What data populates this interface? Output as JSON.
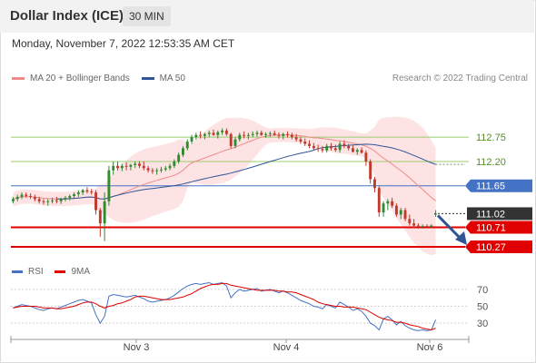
{
  "header": {
    "title": "Dollar Index (ICE)",
    "timeframe": "30 MIN"
  },
  "datetime": "Monday, November 7, 2022 12:53:35 AM CET",
  "legend": {
    "ma20_label": "MA 20 + Bollinger Bands",
    "ma50_label": "MA 50",
    "rsi_label": "RSI",
    "ma9_label": "9MA"
  },
  "credit": "Research © 2022 Trading Central",
  "colors": {
    "bollinger_band": "#fddede",
    "ma20": "#f08a8a",
    "ma50": "#2f5597",
    "candle_up": "#2e8b2e",
    "candle_down": "#c0392b",
    "resistance": "#9acd6e",
    "pivot": "#4472c4",
    "support": "#e00000",
    "last_price": "#333333",
    "rsi": "#4472c4",
    "rsi_ma": "#e00000",
    "arrow": "#2f5597"
  },
  "chart_data": [
    {
      "type": "candlestick",
      "title": "Dollar Index (ICE)",
      "timeframe": "30 MIN",
      "x_ticks": [
        "Nov 3",
        "Nov 4",
        "Nov 6"
      ],
      "y_range": [
        109.9,
        113.8
      ],
      "levels": [
        {
          "label": "112.75",
          "value": 112.75,
          "kind": "resistance"
        },
        {
          "label": "112.20",
          "value": 112.2,
          "kind": "resistance"
        },
        {
          "label": "111.65",
          "value": 111.65,
          "kind": "pivot"
        },
        {
          "label": "111.02",
          "value": 111.02,
          "kind": "last"
        },
        {
          "label": "110.71",
          "value": 110.71,
          "kind": "support"
        },
        {
          "label": "110.27",
          "value": 110.27,
          "kind": "support"
        }
      ],
      "candles": [
        [
          111.3,
          111.4,
          111.25,
          111.35
        ],
        [
          111.35,
          111.45,
          111.3,
          111.4
        ],
        [
          111.4,
          111.5,
          111.35,
          111.45
        ],
        [
          111.45,
          111.5,
          111.38,
          111.42
        ],
        [
          111.42,
          111.48,
          111.35,
          111.4
        ],
        [
          111.4,
          111.45,
          111.3,
          111.35
        ],
        [
          111.35,
          111.4,
          111.25,
          111.3
        ],
        [
          111.3,
          111.35,
          111.22,
          111.28
        ],
        [
          111.28,
          111.35,
          111.2,
          111.3
        ],
        [
          111.3,
          111.38,
          111.25,
          111.32
        ],
        [
          111.32,
          111.4,
          111.25,
          111.3
        ],
        [
          111.3,
          111.38,
          111.24,
          111.35
        ],
        [
          111.35,
          111.42,
          111.3,
          111.38
        ],
        [
          111.38,
          111.45,
          111.32,
          111.42
        ],
        [
          111.42,
          111.5,
          111.38,
          111.46
        ],
        [
          111.46,
          111.55,
          111.4,
          111.5
        ],
        [
          111.5,
          111.58,
          111.44,
          111.55
        ],
        [
          111.55,
          111.62,
          111.48,
          111.52
        ],
        [
          111.52,
          111.58,
          111.45,
          111.5
        ],
        [
          111.5,
          111.55,
          111.0,
          111.1
        ],
        [
          111.1,
          111.15,
          110.5,
          110.8
        ],
        [
          110.8,
          111.5,
          110.4,
          111.3
        ],
        [
          111.3,
          112.1,
          111.2,
          112.0
        ],
        [
          112.0,
          112.2,
          111.9,
          112.1
        ],
        [
          112.1,
          112.2,
          112.0,
          112.05
        ],
        [
          112.05,
          112.15,
          111.98,
          112.1
        ],
        [
          112.1,
          112.18,
          112.0,
          112.08
        ],
        [
          112.08,
          112.15,
          112.0,
          112.12
        ],
        [
          112.12,
          112.2,
          112.05,
          112.15
        ],
        [
          112.15,
          112.2,
          112.05,
          112.1
        ],
        [
          112.1,
          112.2,
          112.0,
          112.05
        ],
        [
          112.05,
          112.1,
          111.95,
          112.0
        ],
        [
          112.0,
          112.05,
          111.92,
          111.98
        ],
        [
          111.98,
          112.05,
          111.9,
          112.0
        ],
        [
          112.0,
          112.08,
          111.95,
          112.02
        ],
        [
          112.02,
          112.1,
          111.98,
          112.05
        ],
        [
          112.05,
          112.15,
          112.0,
          112.1
        ],
        [
          112.1,
          112.25,
          112.05,
          112.2
        ],
        [
          112.2,
          112.4,
          112.15,
          112.35
        ],
        [
          112.35,
          112.55,
          112.3,
          112.5
        ],
        [
          112.5,
          112.7,
          112.45,
          112.65
        ],
        [
          112.65,
          112.8,
          112.6,
          112.75
        ],
        [
          112.75,
          112.85,
          112.7,
          112.8
        ],
        [
          112.8,
          112.88,
          112.72,
          112.78
        ],
        [
          112.78,
          112.85,
          112.7,
          112.82
        ],
        [
          112.82,
          112.9,
          112.75,
          112.85
        ],
        [
          112.85,
          112.92,
          112.78,
          112.8
        ],
        [
          112.8,
          112.9,
          112.72,
          112.86
        ],
        [
          112.86,
          112.95,
          112.8,
          112.9
        ],
        [
          112.9,
          112.95,
          112.78,
          112.82
        ],
        [
          112.82,
          112.85,
          112.5,
          112.55
        ],
        [
          112.55,
          112.75,
          112.5,
          112.7
        ],
        [
          112.7,
          112.85,
          112.65,
          112.8
        ],
        [
          112.8,
          112.88,
          112.72,
          112.78
        ],
        [
          112.78,
          112.85,
          112.7,
          112.8
        ],
        [
          112.8,
          112.88,
          112.75,
          112.82
        ],
        [
          112.82,
          112.9,
          112.76,
          112.85
        ],
        [
          112.85,
          112.9,
          112.78,
          112.8
        ],
        [
          112.8,
          112.86,
          112.74,
          112.82
        ],
        [
          112.82,
          112.88,
          112.76,
          112.84
        ],
        [
          112.84,
          112.9,
          112.78,
          112.8
        ],
        [
          112.8,
          112.86,
          112.72,
          112.78
        ],
        [
          112.78,
          112.85,
          112.7,
          112.82
        ],
        [
          112.82,
          112.88,
          112.74,
          112.8
        ],
        [
          112.8,
          112.85,
          112.7,
          112.75
        ],
        [
          112.75,
          112.82,
          112.65,
          112.7
        ],
        [
          112.7,
          112.76,
          112.6,
          112.65
        ],
        [
          112.65,
          112.72,
          112.55,
          112.6
        ],
        [
          112.6,
          112.68,
          112.5,
          112.55
        ],
        [
          112.55,
          112.62,
          112.45,
          112.5
        ],
        [
          112.5,
          112.58,
          112.42,
          112.48
        ],
        [
          112.48,
          112.55,
          112.4,
          112.45
        ],
        [
          112.45,
          112.6,
          112.4,
          112.55
        ],
        [
          112.55,
          112.62,
          112.45,
          112.5
        ],
        [
          112.5,
          112.58,
          112.42,
          112.46
        ],
        [
          112.46,
          112.65,
          112.4,
          112.6
        ],
        [
          112.6,
          112.68,
          112.5,
          112.55
        ],
        [
          112.55,
          112.6,
          112.45,
          112.5
        ],
        [
          112.5,
          112.56,
          112.4,
          112.42
        ],
        [
          112.42,
          112.5,
          112.35,
          112.46
        ],
        [
          112.46,
          112.52,
          112.38,
          112.4
        ],
        [
          112.4,
          112.45,
          112.1,
          112.2
        ],
        [
          112.2,
          112.25,
          111.7,
          111.8
        ],
        [
          111.8,
          111.85,
          111.5,
          111.6
        ],
        [
          111.6,
          111.65,
          110.95,
          111.05
        ],
        [
          111.05,
          111.3,
          110.95,
          111.25
        ],
        [
          111.25,
          111.35,
          111.1,
          111.3
        ],
        [
          111.3,
          111.38,
          111.15,
          111.2
        ],
        [
          111.2,
          111.25,
          110.95,
          111.0
        ],
        [
          111.0,
          111.15,
          110.9,
          111.1
        ],
        [
          111.1,
          111.15,
          110.85,
          110.9
        ],
        [
          110.9,
          111.0,
          110.75,
          110.8
        ],
        [
          110.8,
          110.9,
          110.7,
          110.75
        ],
        [
          110.75,
          110.8,
          110.68,
          110.72
        ],
        [
          110.72,
          110.78,
          110.68,
          110.74
        ],
        [
          110.74,
          110.78,
          110.7,
          110.73
        ],
        [
          110.73,
          110.78,
          110.7,
          110.75
        ],
        [
          111.0,
          111.1,
          110.95,
          111.02
        ]
      ]
    },
    {
      "type": "line",
      "title": "RSI",
      "y_ticks": [
        70,
        50,
        30
      ],
      "y_range": [
        15,
        85
      ],
      "series": [
        {
          "name": "RSI",
          "values": [
            48,
            50,
            52,
            51,
            50,
            48,
            46,
            45,
            47,
            48,
            47,
            49,
            51,
            53,
            55,
            57,
            58,
            56,
            54,
            40,
            30,
            38,
            62,
            64,
            63,
            62,
            61,
            62,
            63,
            61,
            59,
            56,
            55,
            56,
            57,
            58,
            60,
            63,
            67,
            71,
            74,
            76,
            77,
            76,
            77,
            78,
            76,
            77,
            78,
            74,
            60,
            66,
            70,
            68,
            69,
            70,
            71,
            68,
            69,
            70,
            68,
            66,
            68,
            66,
            63,
            60,
            57,
            55,
            53,
            50,
            49,
            47,
            52,
            50,
            48,
            55,
            52,
            49,
            45,
            47,
            44,
            38,
            30,
            27,
            22,
            35,
            38,
            34,
            28,
            32,
            27,
            24,
            22,
            21,
            22,
            21,
            22,
            34
          ]
        },
        {
          "name": "9MA",
          "values": [
            48,
            49,
            50,
            50,
            50,
            50,
            49,
            48,
            48,
            48,
            47,
            47,
            48,
            49,
            50,
            52,
            54,
            55,
            55,
            53,
            50,
            48,
            50,
            51,
            53,
            54,
            56,
            58,
            61,
            62,
            62,
            61,
            60,
            59,
            58,
            58,
            58,
            59,
            60,
            61,
            63,
            65,
            68,
            71,
            73,
            75,
            76,
            76,
            77,
            77,
            75,
            74,
            73,
            72,
            71,
            70,
            69,
            69,
            69,
            69,
            69,
            68,
            68,
            67,
            67,
            66,
            64,
            62,
            60,
            58,
            55,
            53,
            52,
            51,
            50,
            50,
            49,
            49,
            49,
            48,
            47,
            46,
            43,
            40,
            37,
            35,
            34,
            33,
            31,
            31,
            30,
            28,
            27,
            26,
            24,
            23,
            22,
            24
          ]
        }
      ]
    }
  ]
}
